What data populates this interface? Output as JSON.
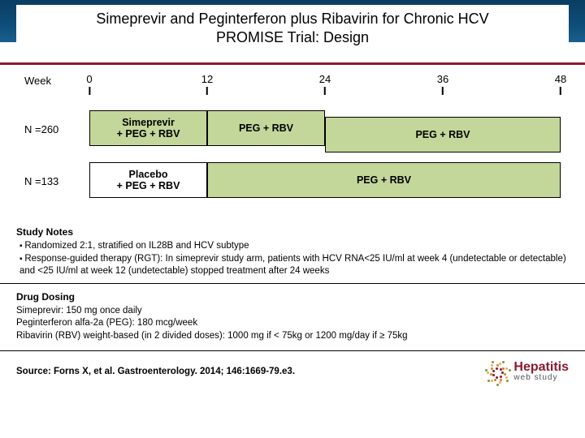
{
  "title_line1": "Simeprevir and Peginterferon plus Ribavirin for Chronic HCV",
  "title_line2": "PROMISE Trial: Design",
  "timeline": {
    "label": "Week",
    "ticks": [
      0,
      12,
      24,
      36,
      48
    ],
    "max": 48
  },
  "arms": [
    {
      "n_label": "N =260",
      "segments": [
        {
          "from": 0,
          "to": 12,
          "label": "Simeprevir\n+ PEG + RBV",
          "fill": "green"
        },
        {
          "from": 12,
          "to": 24,
          "label": "PEG + RBV",
          "fill": "green"
        },
        {
          "from": 24,
          "to": 48,
          "label": "PEG + RBV",
          "fill": "green",
          "vshift": 8
        }
      ]
    },
    {
      "n_label": "N =133",
      "segments": [
        {
          "from": 0,
          "to": 12,
          "label": "Placebo\n+ PEG + RBV",
          "fill": "white"
        },
        {
          "from": 12,
          "to": 48,
          "label": "PEG + RBV",
          "fill": "green"
        }
      ]
    }
  ],
  "study_notes": {
    "heading": "Study Notes",
    "bullets": [
      "Randomized 2:1, stratified on IL28B and HCV subtype",
      "Response-guided therapy (RGT): In simeprevir study arm, patients with HCV RNA<25 IU/ml at week 4 (undetectable or detectable) and <25 IU/ml at week 12 (undetectable) stopped treatment after 24 weeks"
    ]
  },
  "dosing": {
    "heading": "Drug Dosing",
    "lines": [
      "Simeprevir: 150 mg once daily",
      "Peginterferon alfa-2a (PEG): 180 mcg/week",
      "Ribavirin (RBV) weight-based (in 2 divided doses): 1000 mg if < 75kg or 1200 mg/day if ≥ 75kg"
    ]
  },
  "source": "Source: Forns X, et al.  Gastroenterology. 2014; 146:1669-79.e3.",
  "logo": {
    "line1": "Hepatitis",
    "line2": "web study",
    "colors": [
      "#8b1a2e",
      "#d97c2b",
      "#e8b04b",
      "#7a9a3b"
    ]
  },
  "colors": {
    "header_gradient_top": "#0a3d62",
    "header_gradient_bottom": "#1a5f8f",
    "accent_red": "#8b1a2e",
    "bar_green": "#c4d79b",
    "bar_white": "#ffffff",
    "border": "#000000",
    "text": "#000000"
  },
  "fonts": {
    "title_size_pt": 18,
    "body_size_pt": 12,
    "notes_size_pt": 11
  }
}
